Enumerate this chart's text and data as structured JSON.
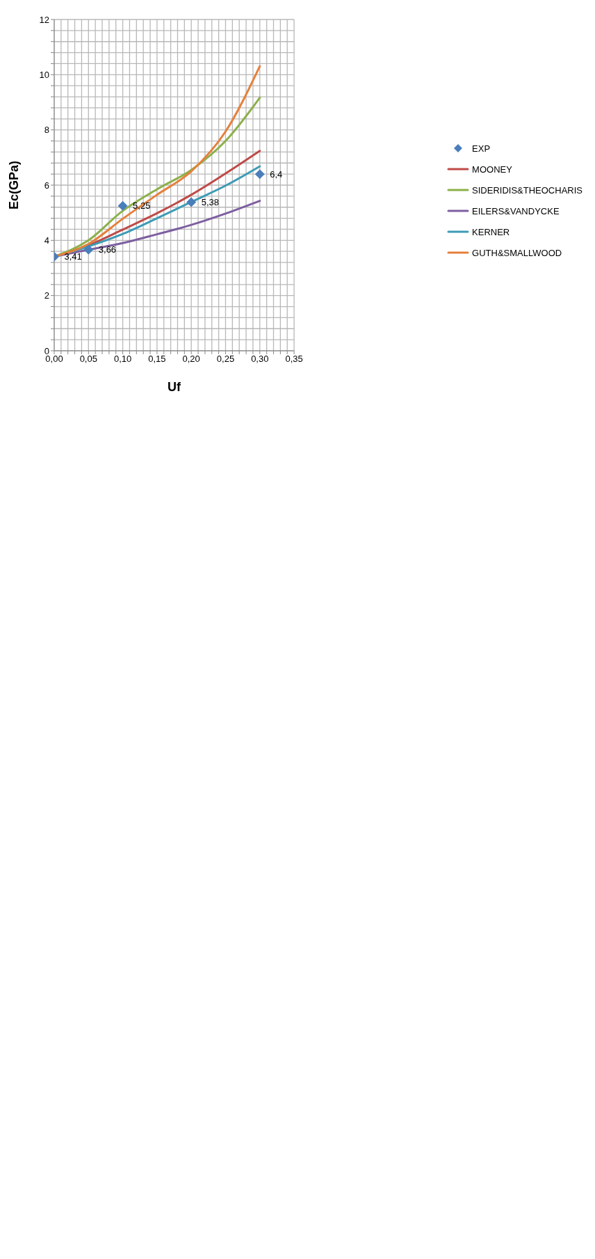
{
  "chart_data": {
    "type": "line",
    "xlabel": "Uf",
    "ylabel": "Ec(GPa)",
    "xlim": [
      0,
      0.35
    ],
    "ylim": [
      0,
      12
    ],
    "grid": true,
    "legend": "right",
    "marker": "none",
    "xticks": [
      {
        "value": 0,
        "label": "0,00"
      },
      {
        "value": 0.01,
        "label": null
      },
      {
        "value": 0.02,
        "label": null
      },
      {
        "value": 0.03,
        "label": null
      },
      {
        "value": 0.04,
        "label": null
      },
      {
        "value": 0.05,
        "label": "0,05"
      },
      {
        "value": 0.06,
        "label": null
      },
      {
        "value": 0.07,
        "label": null
      },
      {
        "value": 0.08,
        "label": null
      },
      {
        "value": 0.09,
        "label": null
      },
      {
        "value": 0.1,
        "label": "0,10"
      },
      {
        "value": 0.11,
        "label": null
      },
      {
        "value": 0.12,
        "label": null
      },
      {
        "value": 0.13,
        "label": null
      },
      {
        "value": 0.14,
        "label": null
      },
      {
        "value": 0.15,
        "label": "0,15"
      },
      {
        "value": 0.16,
        "label": null
      },
      {
        "value": 0.17,
        "label": null
      },
      {
        "value": 0.18,
        "label": null
      },
      {
        "value": 0.19,
        "label": null
      },
      {
        "value": 0.2,
        "label": "0,20"
      },
      {
        "value": 0.21,
        "label": null
      },
      {
        "value": 0.22,
        "label": null
      },
      {
        "value": 0.23,
        "label": null
      },
      {
        "value": 0.24,
        "label": null
      },
      {
        "value": 0.25,
        "label": "0,25"
      },
      {
        "value": 0.26,
        "label": null
      },
      {
        "value": 0.27,
        "label": null
      },
      {
        "value": 0.28,
        "label": null
      },
      {
        "value": 0.29,
        "label": null
      },
      {
        "value": 0.3,
        "label": "0,30"
      },
      {
        "value": 0.31,
        "label": null
      },
      {
        "value": 0.32,
        "label": null
      },
      {
        "value": 0.33,
        "label": null
      },
      {
        "value": 0.34,
        "label": null
      },
      {
        "value": 0.35,
        "label": "0,35"
      }
    ],
    "yticks": [
      0,
      {
        "value": 0.4,
        "label": null
      },
      {
        "value": 0.8,
        "label": null
      },
      {
        "value": 1.2,
        "label": null
      },
      {
        "value": 1.6,
        "label": null
      },
      2,
      {
        "value": 2.4,
        "label": null
      },
      {
        "value": 2.8,
        "label": null
      },
      {
        "value": 3.2,
        "label": null
      },
      {
        "value": 3.6,
        "label": null
      },
      4,
      {
        "value": 4.4,
        "label": null
      },
      {
        "value": 4.8,
        "label": null
      },
      {
        "value": 5.2,
        "label": null
      },
      {
        "value": 5.6,
        "label": null
      },
      6,
      {
        "value": 6.4,
        "label": null
      },
      {
        "value": 6.8,
        "label": null
      },
      {
        "value": 7.2,
        "label": null
      },
      {
        "value": 7.6,
        "label": null
      },
      8,
      {
        "value": 8.4,
        "label": null
      },
      {
        "value": 8.8,
        "label": null
      },
      {
        "value": 9.2,
        "label": null
      },
      {
        "value": 9.6,
        "label": null
      },
      10,
      {
        "value": 10.4,
        "label": null
      },
      {
        "value": 10.8,
        "label": null
      },
      {
        "value": 11.2,
        "label": null
      },
      {
        "value": 11.6,
        "label": null
      },
      12
    ],
    "series": [
      {
        "name": "EXP",
        "type": "scatter",
        "marker": "diamond",
        "color": "#4a7ebb",
        "x": [
          0,
          0.05,
          0.1,
          0.2,
          0.3
        ],
        "values": [
          3.41,
          3.66,
          5.25,
          5.38,
          6.4
        ],
        "value_labels": [
          "3,41",
          "3,66",
          "5,25",
          "5,38",
          "6,4"
        ]
      },
      {
        "name": "MOONEY",
        "color": "#be4b48",
        "x": [
          0,
          0.05,
          0.1,
          0.15,
          0.2,
          0.25,
          0.3
        ],
        "values": [
          3.41,
          3.82,
          4.39,
          4.98,
          5.65,
          6.42,
          7.24
        ]
      },
      {
        "name": "SIDERIDIS&THEOCHARIS",
        "color": "#8cb04b",
        "x": [
          0,
          0.05,
          0.1,
          0.15,
          0.2,
          0.25,
          0.3
        ],
        "values": [
          3.41,
          4.0,
          5.07,
          5.85,
          6.55,
          7.6,
          9.17
        ]
      },
      {
        "name": "EILERS&VANDYCKE",
        "color": "#7d5fa0",
        "x": [
          0,
          0.05,
          0.1,
          0.15,
          0.2,
          0.25,
          0.3
        ],
        "values": [
          3.41,
          3.66,
          3.9,
          4.22,
          4.56,
          4.97,
          5.43
        ]
      },
      {
        "name": "KERNER",
        "color": "#3d9bb5",
        "x": [
          0,
          0.05,
          0.1,
          0.15,
          0.2,
          0.25,
          0.3
        ],
        "values": [
          3.41,
          3.78,
          4.23,
          4.8,
          5.39,
          5.98,
          6.68
        ]
      },
      {
        "name": "GUTH&SMALLWOOD",
        "color": "#e5803c",
        "x": [
          0,
          0.05,
          0.1,
          0.15,
          0.2,
          0.25,
          0.3
        ],
        "values": [
          3.41,
          3.87,
          4.78,
          5.65,
          6.5,
          7.94,
          10.31
        ]
      }
    ]
  }
}
